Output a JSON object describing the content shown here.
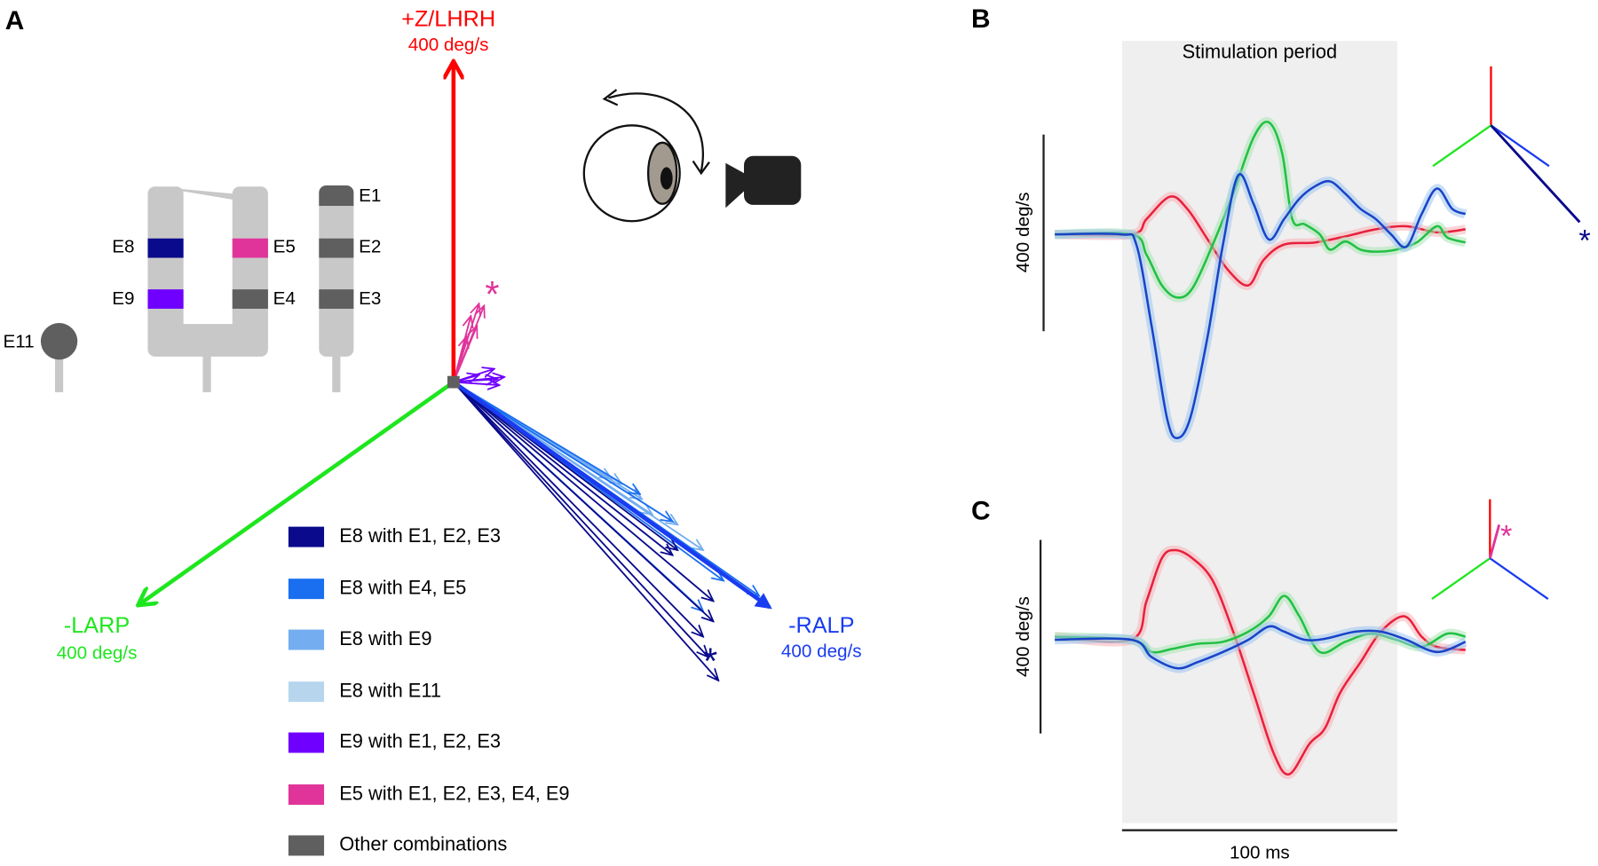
{
  "panels": {
    "a": "A",
    "b": "B",
    "c": "C"
  },
  "axes3d": {
    "z": {
      "label": "+Z/LHRH",
      "speed": "400 deg/s"
    },
    "larp": {
      "label": "-LARP",
      "speed": "400 deg/s"
    },
    "ralp": {
      "label": "-RALP",
      "speed": "400 deg/s"
    }
  },
  "electrodes": {
    "e1": "E1",
    "e2": "E2",
    "e3": "E3",
    "e4": "E4",
    "e5": "E5",
    "e8": "E8",
    "e9": "E9",
    "e11": "E11"
  },
  "legend": [
    "E8 with E1, E2, E3",
    "E8 with E4, E5",
    "E8 with E9",
    "E8 with E11",
    "E9 with E1, E2, E3",
    "E5 with E1, E2, E3, E4, E9",
    "Other combinations"
  ],
  "asterisk": "*",
  "panel_b": {
    "title": "Stimulation period",
    "scale_label": "400 deg/s"
  },
  "panel_c": {
    "scale_label": "400 deg/s"
  },
  "time_scale": "100 ms"
}
